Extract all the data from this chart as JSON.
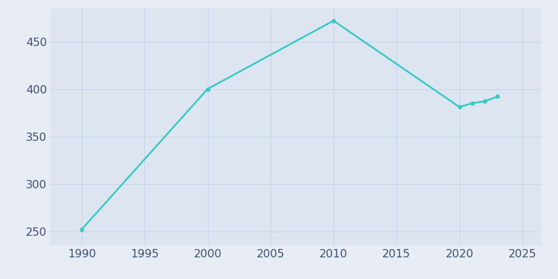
{
  "years": [
    1990,
    2000,
    2010,
    2020,
    2021,
    2022,
    2023
  ],
  "population": [
    252,
    400,
    472,
    381,
    385,
    387,
    392
  ],
  "line_color": "#36c9c6",
  "marker": "o",
  "marker_size": 3.5,
  "line_width": 1.8,
  "fig_bg_color": "#e8edf5",
  "plot_bg_color": "#dde6f0",
  "grid_color": "#c8d5e8",
  "xlabel": "",
  "ylabel": "",
  "xlim": [
    1987.5,
    2026.5
  ],
  "ylim": [
    235,
    485
  ],
  "xticks": [
    1990,
    1995,
    2000,
    2005,
    2010,
    2015,
    2020,
    2025
  ],
  "yticks": [
    250,
    300,
    350,
    400,
    450
  ],
  "tick_color": "#3d4f6e",
  "tick_fontsize": 11.5
}
